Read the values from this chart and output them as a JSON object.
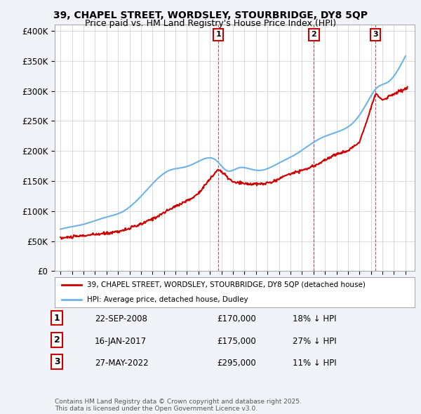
{
  "title_line1": "39, CHAPEL STREET, WORDSLEY, STOURBRIDGE, DY8 5QP",
  "title_line2": "Price paid vs. HM Land Registry's House Price Index (HPI)",
  "ylim": [
    0,
    410000
  ],
  "yticks": [
    0,
    50000,
    100000,
    150000,
    200000,
    250000,
    300000,
    350000,
    400000
  ],
  "ytick_labels": [
    "£0",
    "£50K",
    "£100K",
    "£150K",
    "£200K",
    "£250K",
    "£300K",
    "£350K",
    "£400K"
  ],
  "hpi_color": "#6db3e8",
  "price_color": "#cc0000",
  "background_color": "#f0f4f8",
  "plot_bg_color": "#ffffff",
  "grid_color": "#cccccc",
  "legend_label_price": "39, CHAPEL STREET, WORDSLEY, STOURBRIDGE, DY8 5QP (detached house)",
  "legend_label_hpi": "HPI: Average price, detached house, Dudley",
  "sale1_label": "1",
  "sale1_price": 170000,
  "sale1_text": "22-SEP-2008",
  "sale1_pct": "18% ↓ HPI",
  "sale2_label": "2",
  "sale2_price": 175000,
  "sale2_text": "16-JAN-2017",
  "sale2_pct": "27% ↓ HPI",
  "sale3_label": "3",
  "sale3_price": 295000,
  "sale3_text": "27-MAY-2022",
  "sale3_pct": "11% ↓ HPI",
  "footnote": "Contains HM Land Registry data © Crown copyright and database right 2025.\nThis data is licensed under the Open Government Licence v3.0."
}
